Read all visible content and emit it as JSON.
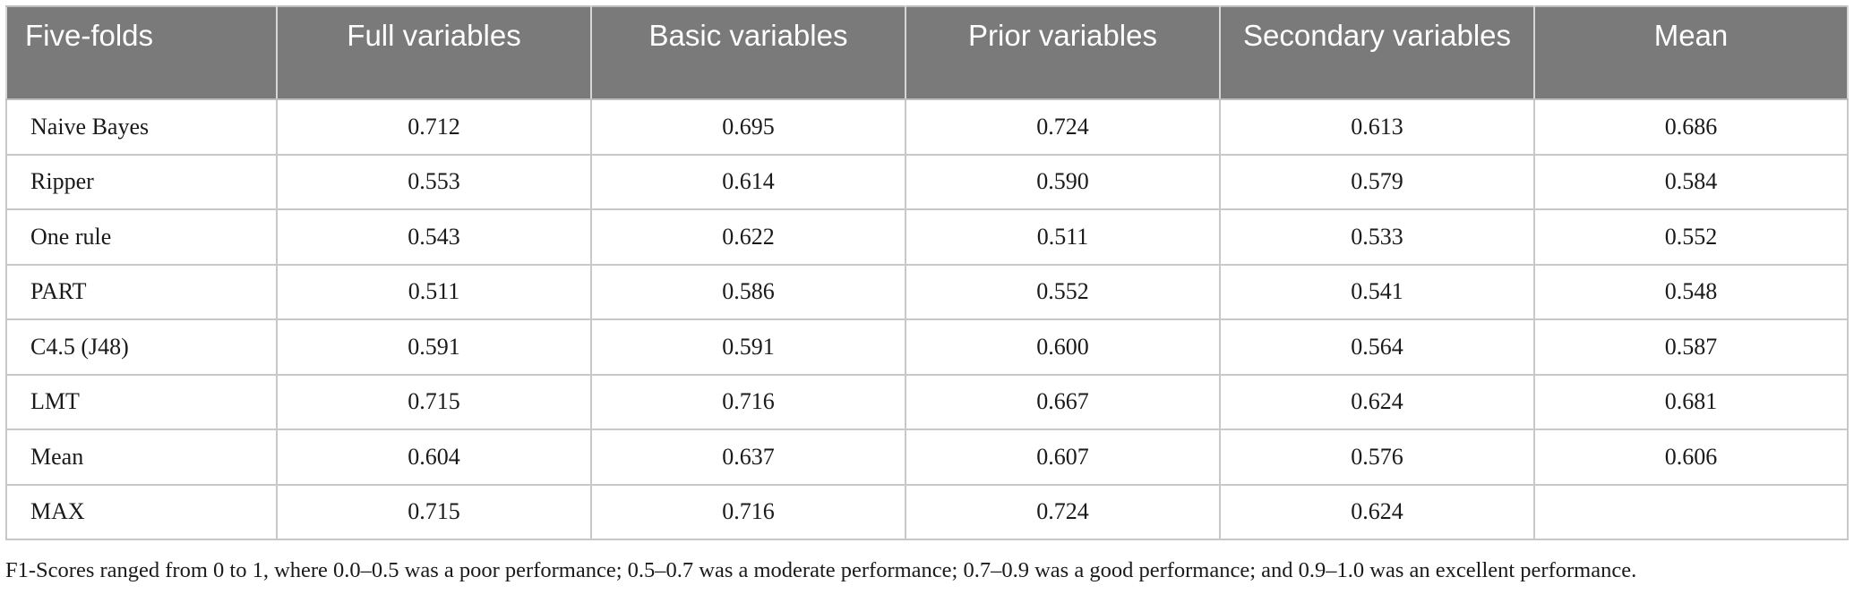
{
  "table": {
    "headers": [
      "Five-folds",
      "Full variables",
      "Basic variables",
      "Prior variables",
      "Secondary variables",
      "Mean"
    ],
    "rows": [
      {
        "label": "Naive Bayes",
        "values": [
          "0.712",
          "0.695",
          "0.724",
          "0.613",
          "0.686"
        ]
      },
      {
        "label": "Ripper",
        "values": [
          "0.553",
          "0.614",
          "0.590",
          "0.579",
          "0.584"
        ]
      },
      {
        "label": "One rule",
        "values": [
          "0.543",
          "0.622",
          "0.511",
          "0.533",
          "0.552"
        ]
      },
      {
        "label": "PART",
        "values": [
          "0.511",
          "0.586",
          "0.552",
          "0.541",
          "0.548"
        ]
      },
      {
        "label": "C4.5 (J48)",
        "values": [
          "0.591",
          "0.591",
          "0.600",
          "0.564",
          "0.587"
        ]
      },
      {
        "label": "LMT",
        "values": [
          "0.715",
          "0.716",
          "0.667",
          "0.624",
          "0.681"
        ]
      },
      {
        "label": "Mean",
        "values": [
          "0.604",
          "0.637",
          "0.607",
          "0.576",
          "0.606"
        ]
      },
      {
        "label": "MAX",
        "values": [
          "0.715",
          "0.716",
          "0.724",
          "0.624",
          ""
        ]
      }
    ]
  },
  "footnote": "F1-Scores ranged from 0 to 1, where 0.0–0.5 was a poor performance; 0.5–0.7 was a moderate performance; 0.7–0.9 was a good performance; and 0.9–1.0 was an excellent performance.",
  "colors": {
    "header_bg": "#7a7a7a",
    "header_text": "#ffffff",
    "grid": "#c8c8c8"
  }
}
